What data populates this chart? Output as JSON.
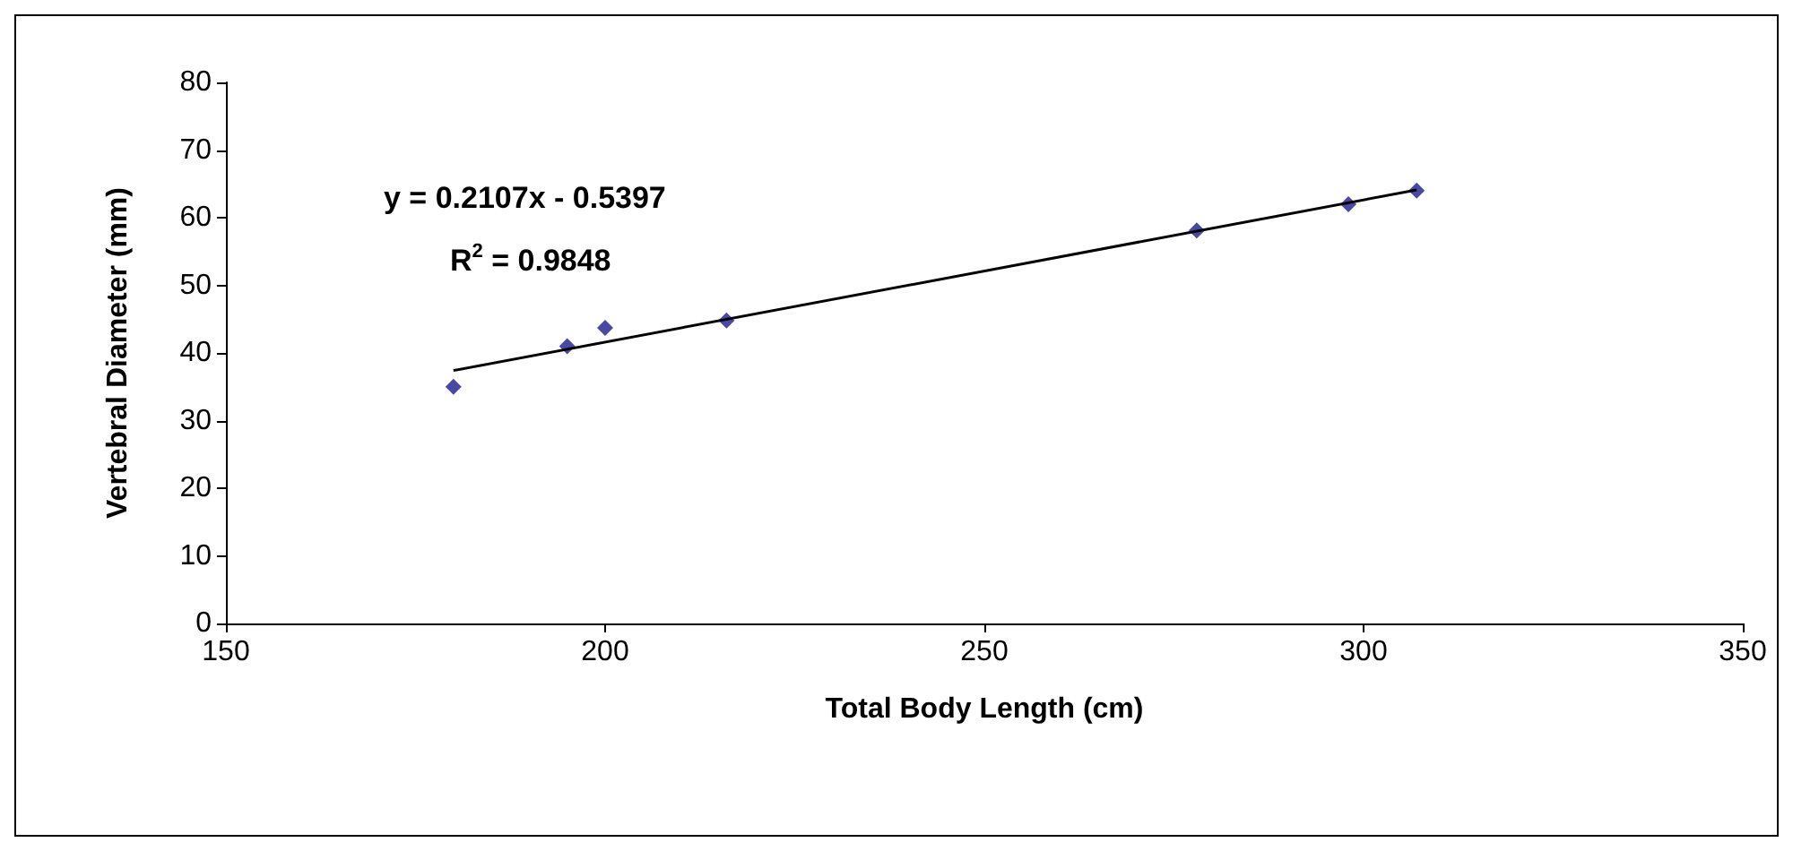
{
  "chart_data": {
    "type": "scatter",
    "xlabel": "Total Body Length (cm)",
    "ylabel": "Vertebral Diameter (mm)",
    "xlim": [
      150,
      350
    ],
    "xticks": [
      150,
      200,
      250,
      300,
      350
    ],
    "ylim": [
      0,
      80
    ],
    "yticks": [
      0,
      10,
      20,
      30,
      40,
      50,
      60,
      70,
      80
    ],
    "grid": false,
    "marker": "diamond",
    "series": [
      {
        "color": "#1c1c8c",
        "x": [
          180,
          195,
          200,
          216,
          278,
          298,
          307
        ],
        "values": [
          35,
          41,
          43.7,
          44.8,
          58.1,
          62,
          64
        ]
      },
      {
        "type": "line",
        "color": "#000000",
        "marker": "none",
        "line_style": "solid",
        "x": [
          180,
          307
        ],
        "values": [
          37.4,
          64.1
        ]
      }
    ],
    "annotations": [
      "y = 0.2107x - 0.5397",
      "R$^{2}$ = 0.9848"
    ]
  }
}
